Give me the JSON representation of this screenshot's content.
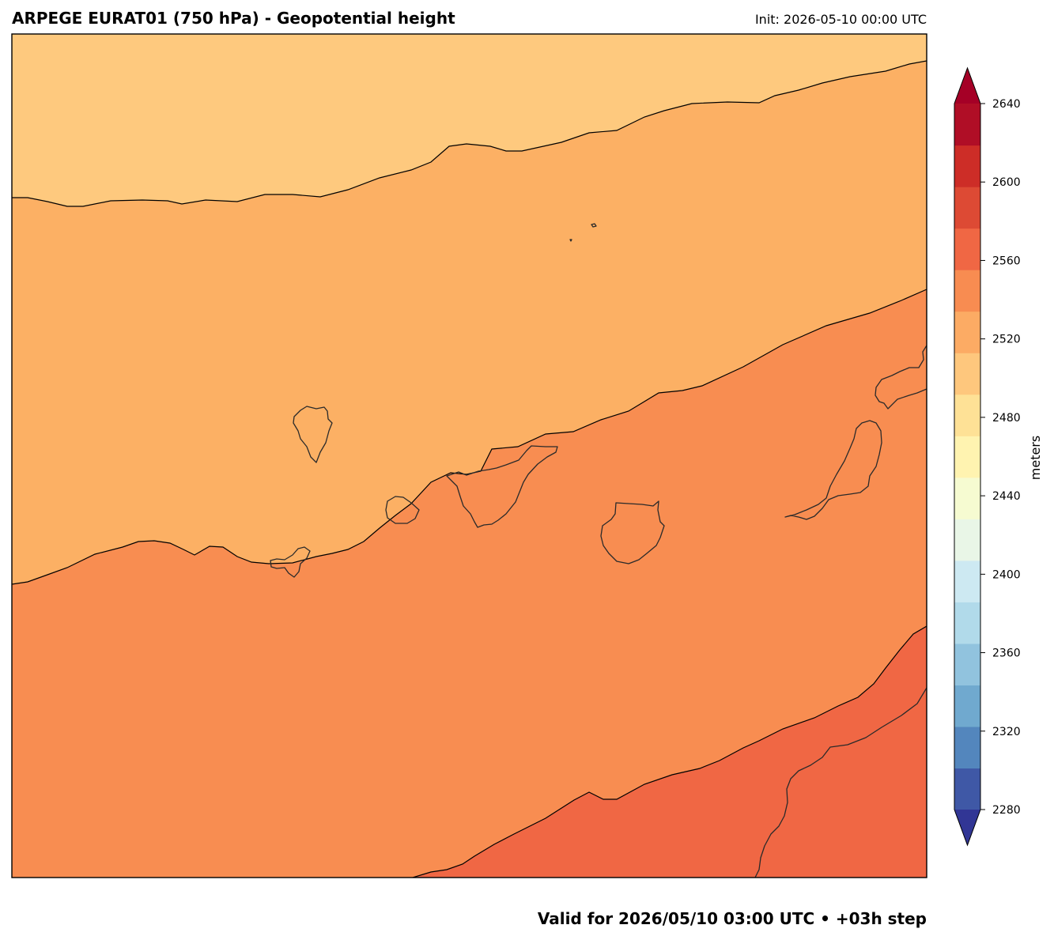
{
  "header": {
    "title": "ARPEGE EURAT01 (750 hPa) - Geopotential height",
    "init": "Init: 2026-05-10 00:00 UTC"
  },
  "footer": {
    "valid": "Valid for 2026/05/10 03:00 UTC  • +03h step"
  },
  "colorbar": {
    "label": "meters",
    "ticks": [
      "2280",
      "2320",
      "2360",
      "2400",
      "2440",
      "2480",
      "2520",
      "2560",
      "2600",
      "2640"
    ],
    "colors": [
      "#313695",
      "#3f58a6",
      "#5386bd",
      "#70a9cf",
      "#91c3de",
      "#b1daea",
      "#cde9f2",
      "#e9f6e7",
      "#f6fbd1",
      "#fff3b0",
      "#fee196",
      "#fec77d",
      "#fcab64",
      "#f88c51",
      "#f06744",
      "#dd4a34",
      "#cd2d27",
      "#b00e26",
      "#a50026"
    ]
  },
  "map": {
    "fill_bands": [
      "#fec97e",
      "#fcb064",
      "#f88d51",
      "#f06744"
    ]
  }
}
